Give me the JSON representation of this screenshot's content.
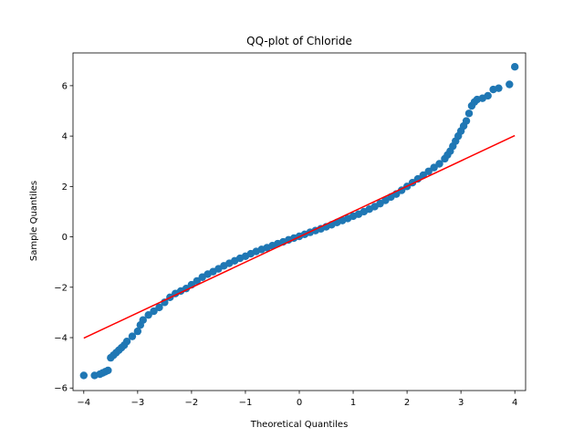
{
  "chart_data": {
    "type": "scatter",
    "title": "QQ-plot of Chloride",
    "xlabel": "Theoretical Quantiles",
    "ylabel": "Sample Quantiles",
    "xlim": [
      -4.2,
      4.2
    ],
    "ylim": [
      -6.1,
      7.3
    ],
    "xticks": [
      -4,
      -3,
      -2,
      -1,
      0,
      1,
      2,
      3,
      4
    ],
    "yticks": [
      -6,
      -4,
      -2,
      0,
      2,
      4,
      6
    ],
    "grid": false,
    "colors": {
      "points": "#1f77b4",
      "reference_line": "#ff0000"
    },
    "reference_line": {
      "x": [
        -4,
        4
      ],
      "y": [
        -4.02,
        4.02
      ]
    },
    "points_x": [
      -4.0,
      -3.8,
      -3.7,
      -3.65,
      -3.6,
      -3.55,
      -3.5,
      -3.45,
      -3.4,
      -3.35,
      -3.3,
      -3.25,
      -3.2,
      -3.1,
      -3.0,
      -2.95,
      -2.9,
      -2.8,
      -2.7,
      -2.6,
      -2.5,
      -2.4,
      -2.3,
      -2.2,
      -2.1,
      -2.0,
      -1.9,
      -1.8,
      -1.7,
      -1.6,
      -1.5,
      -1.4,
      -1.3,
      -1.2,
      -1.1,
      -1.0,
      -0.9,
      -0.8,
      -0.7,
      -0.6,
      -0.5,
      -0.4,
      -0.3,
      -0.2,
      -0.1,
      0.0,
      0.1,
      0.2,
      0.3,
      0.4,
      0.5,
      0.6,
      0.7,
      0.8,
      0.9,
      1.0,
      1.1,
      1.2,
      1.3,
      1.4,
      1.5,
      1.6,
      1.7,
      1.8,
      1.9,
      2.0,
      2.1,
      2.2,
      2.3,
      2.4,
      2.5,
      2.6,
      2.7,
      2.75,
      2.8,
      2.85,
      2.9,
      2.95,
      3.0,
      3.05,
      3.1,
      3.15,
      3.2,
      3.25,
      3.3,
      3.4,
      3.5,
      3.6,
      3.7,
      3.9,
      4.0
    ],
    "points_y": [
      -5.5,
      -5.5,
      -5.45,
      -5.4,
      -5.35,
      -5.3,
      -4.8,
      -4.7,
      -4.6,
      -4.5,
      -4.4,
      -4.3,
      -4.15,
      -3.95,
      -3.75,
      -3.5,
      -3.3,
      -3.1,
      -2.95,
      -2.8,
      -2.6,
      -2.4,
      -2.25,
      -2.15,
      -2.05,
      -1.9,
      -1.75,
      -1.6,
      -1.48,
      -1.38,
      -1.27,
      -1.15,
      -1.05,
      -0.95,
      -0.85,
      -0.77,
      -0.67,
      -0.58,
      -0.5,
      -0.43,
      -0.35,
      -0.27,
      -0.2,
      -0.12,
      -0.05,
      0.02,
      0.1,
      0.18,
      0.25,
      0.32,
      0.4,
      0.48,
      0.57,
      0.65,
      0.73,
      0.82,
      0.9,
      1.0,
      1.1,
      1.2,
      1.32,
      1.45,
      1.58,
      1.7,
      1.85,
      2.0,
      2.15,
      2.3,
      2.45,
      2.6,
      2.75,
      2.9,
      3.1,
      3.25,
      3.4,
      3.6,
      3.8,
      4.0,
      4.2,
      4.4,
      4.6,
      4.9,
      5.2,
      5.35,
      5.45,
      5.5,
      5.6,
      5.85,
      5.9,
      6.05,
      6.75
    ]
  }
}
